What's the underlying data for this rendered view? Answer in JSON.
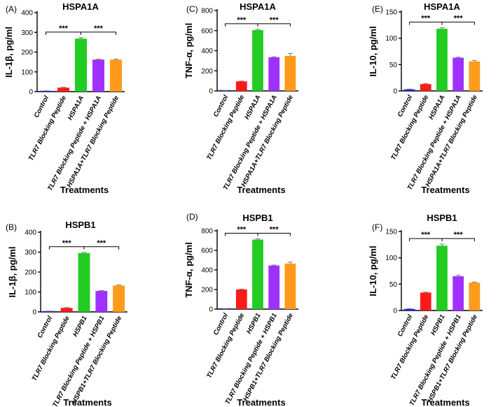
{
  "colors": {
    "control": "#2020ff",
    "tlr7": "#ff1a1a",
    "hsp": "#22cc22",
    "combo1": "#a030ff",
    "combo2": "#ff9a1a"
  },
  "chart_data": [
    {
      "type": "bar",
      "panel": "(A)",
      "title": "HSPA1A",
      "ylabel": "IL-1β, pg/ml",
      "xlabel": "Treatments",
      "ylim": [
        0,
        400
      ],
      "yticks": [
        0,
        100,
        200,
        300,
        400
      ],
      "categories": [
        "Control",
        "TLR7 Blocking Peptide",
        "HSPA1A",
        "TLR7 Blocking Peptide + HSPA1A",
        "HSPA1A+TLR7 Blocking Peptide"
      ],
      "values": [
        3,
        20,
        268,
        162,
        162
      ],
      "errors": [
        1,
        2,
        5,
        2,
        2
      ],
      "significance": [
        {
          "from": 0,
          "to": 2,
          "label": "***"
        },
        {
          "from": 2,
          "to": 4,
          "label": "***"
        }
      ]
    },
    {
      "type": "bar",
      "panel": "(C)",
      "title": "HSPA1A",
      "ylabel": "TNF-α, pg/ml",
      "xlabel": "Treatments",
      "ylim": [
        0,
        800
      ],
      "yticks": [
        0,
        200,
        400,
        600,
        800
      ],
      "categories": [
        "Control",
        "TLR7 Blocking Peptide",
        "HSPA1A",
        "TLR7 Blocking Peptide + HSPA1A",
        "HSPA1A+TLR7 Blocking Peptide"
      ],
      "values": [
        3,
        95,
        605,
        335,
        348
      ],
      "errors": [
        1,
        3,
        8,
        4,
        25
      ],
      "significance": [
        {
          "from": 0,
          "to": 2,
          "label": "***"
        },
        {
          "from": 2,
          "to": 4,
          "label": "***"
        }
      ]
    },
    {
      "type": "bar",
      "panel": "(E)",
      "title": "HSPA1A",
      "ylabel": "IL-10, pg/ml",
      "xlabel": "Treatments",
      "ylim": [
        0,
        150
      ],
      "yticks": [
        0,
        50,
        100,
        150
      ],
      "categories": [
        "Control",
        "TLR7 Blocking Peptide",
        "HSPA1A",
        "TLR7 Blocking Peptide + HSPA1A",
        "HSPA1A+TLR7 Blocking Peptide"
      ],
      "values": [
        3,
        13,
        118,
        63,
        56
      ],
      "errors": [
        0.5,
        1,
        2,
        1,
        2
      ],
      "significance": [
        {
          "from": 0,
          "to": 2,
          "label": "***"
        },
        {
          "from": 2,
          "to": 4,
          "label": "***"
        }
      ]
    },
    {
      "type": "bar",
      "panel": "(B)",
      "title": "HSPB1",
      "ylabel": "IL-1β, pg/ml",
      "xlabel": "Treatments",
      "ylim": [
        0,
        400
      ],
      "yticks": [
        0,
        100,
        200,
        300,
        400
      ],
      "categories": [
        "Control",
        "TLR7 Blocking Peptide",
        "HSPB1",
        "TLR7 Blocking Peptide + HSPB1",
        "HSPB1+TLR7 Blocking Peptide"
      ],
      "values": [
        3,
        20,
        295,
        105,
        132
      ],
      "errors": [
        1,
        2,
        4,
        2,
        3
      ],
      "significance": [
        {
          "from": 0,
          "to": 2,
          "label": "***"
        },
        {
          "from": 2,
          "to": 4,
          "label": "***"
        }
      ]
    },
    {
      "type": "bar",
      "panel": "(D)",
      "title": "HSPB1",
      "ylabel": "TNF-α, pg/ml",
      "xlabel": "Treatments",
      "ylim": [
        0,
        800
      ],
      "yticks": [
        0,
        200,
        400,
        600,
        800
      ],
      "categories": [
        "Control",
        "TLR7 Blocking Peptide",
        "HSPB1",
        "TLR7 Blocking Peptide + HSPB1",
        "HSPB1+TLR7 Blocking Peptide"
      ],
      "values": [
        3,
        200,
        710,
        445,
        465
      ],
      "errors": [
        1,
        4,
        8,
        5,
        15
      ],
      "significance": [
        {
          "from": 0,
          "to": 2,
          "label": "***"
        },
        {
          "from": 2,
          "to": 4,
          "label": "***"
        }
      ]
    },
    {
      "type": "bar",
      "panel": "(F)",
      "title": "HSPB1",
      "ylabel": "IL-10, pg/ml",
      "xlabel": "Treatments",
      "ylim": [
        0,
        150
      ],
      "yticks": [
        0,
        50,
        100,
        150
      ],
      "categories": [
        "Control",
        "TLR7 Blocking Peptide",
        "HSPB1",
        "TLR7 Blocking Peptide + HSPB1",
        "HSPB1+TLR7 Blocking Peptide"
      ],
      "values": [
        3,
        34,
        123,
        65,
        53
      ],
      "errors": [
        0.5,
        1,
        3,
        2,
        1
      ],
      "significance": [
        {
          "from": 0,
          "to": 2,
          "label": "***"
        },
        {
          "from": 2,
          "to": 4,
          "label": "***"
        }
      ]
    }
  ]
}
